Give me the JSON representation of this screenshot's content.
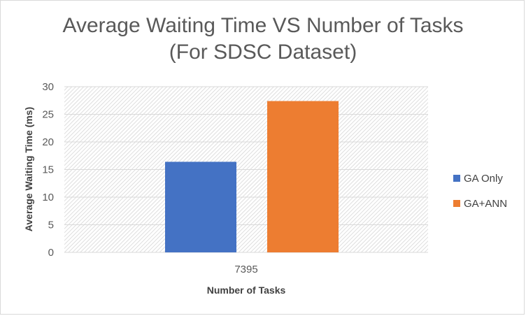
{
  "chart_data": {
    "type": "bar",
    "title_line1": "Average Waiting Time VS Number of Tasks",
    "title_line2": "(For SDSC Dataset)",
    "xlabel": "Number of Tasks",
    "ylabel": "Average Waiting Time (ms)",
    "categories": [
      "7395"
    ],
    "series": [
      {
        "name": "GA Only",
        "values": [
          16.4
        ],
        "color": "#4472c4"
      },
      {
        "name": "GA+ANN",
        "values": [
          27.4
        ],
        "color": "#ed7d31"
      }
    ],
    "ylim": [
      0,
      30
    ],
    "yticks": [
      0,
      5,
      10,
      15,
      20,
      25,
      30
    ],
    "grid": true,
    "legend_position": "right"
  }
}
